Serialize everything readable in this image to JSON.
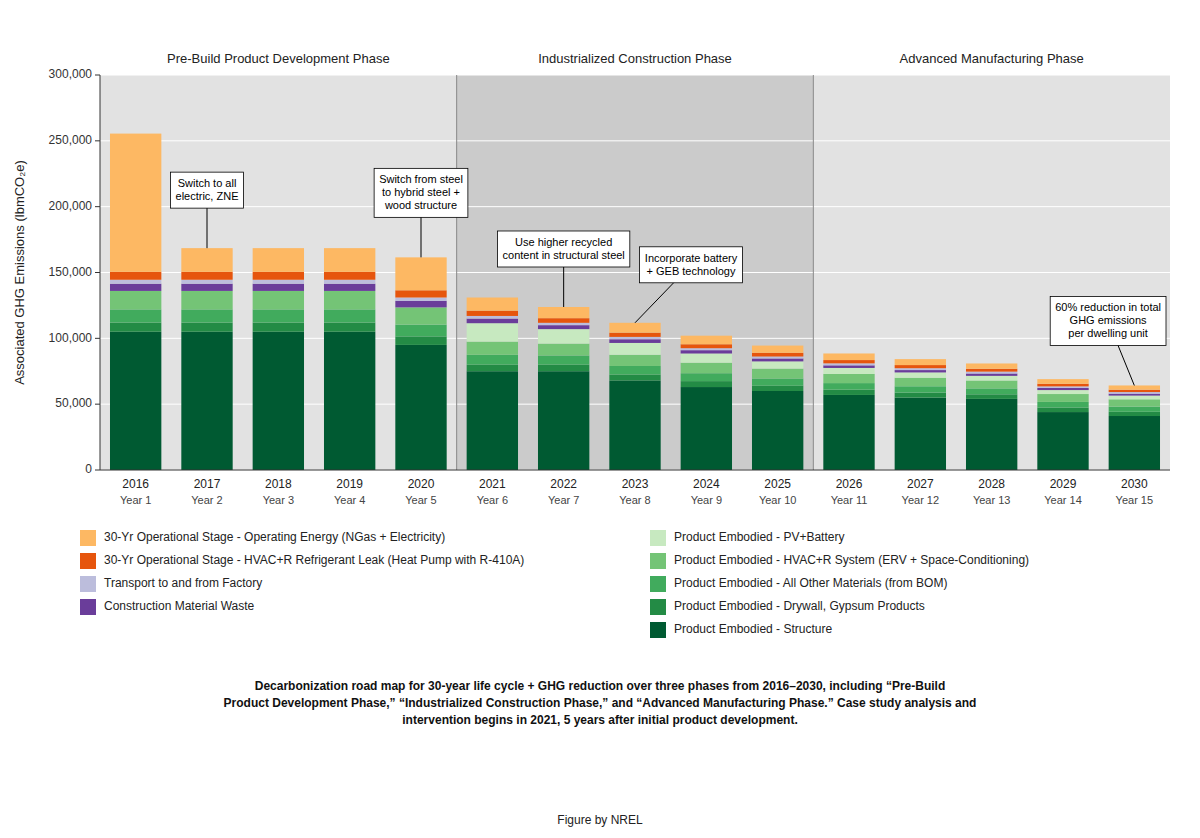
{
  "chart_data": {
    "type": "bar",
    "stacked": true,
    "grid": true,
    "legend": "bottom",
    "categories": [
      "2016",
      "2017",
      "2018",
      "2019",
      "2020",
      "2021",
      "2022",
      "2023",
      "2024",
      "2025",
      "2026",
      "2027",
      "2028",
      "2029",
      "2030"
    ],
    "category_sublabels": [
      "Year 1",
      "Year 2",
      "Year 3",
      "Year 4",
      "Year 5",
      "Year 6",
      "Year 7",
      "Year 8",
      "Year 9",
      "Year 10",
      "Year 11",
      "Year 12",
      "Year 13",
      "Year 14",
      "Year 15"
    ],
    "y_label": "Associated GHG Emissions (lbmCO₂e)",
    "ylim": [
      0,
      300000
    ],
    "yticks": [
      0,
      {
        "value": 50000,
        "label": "50,000"
      },
      {
        "value": 100000,
        "label": "100,000"
      },
      {
        "value": 150000,
        "label": "150,000"
      },
      {
        "value": 200000,
        "label": "200,000"
      },
      {
        "value": 250000,
        "label": "250,000"
      },
      {
        "value": 300000,
        "label": "300,000"
      }
    ],
    "phases": [
      {
        "label": "Pre-Build Product Development Phase",
        "from": "2016",
        "to": "2020",
        "color": "#e2e2e2"
      },
      {
        "label": "Industrialized Construction Phase",
        "from": "2021",
        "to": "2025",
        "color": "#cbcbcb"
      },
      {
        "label": "Advanced Manufacturing Phase",
        "from": "2026",
        "to": "2030",
        "color": "#e2e2e2"
      }
    ],
    "series": [
      {
        "name": "Product Embodied - Structure",
        "color": "#005a32",
        "values": [
          105000,
          105000,
          105000,
          105000,
          95000,
          75000,
          75000,
          68000,
          63000,
          60000,
          57000,
          55000,
          54000,
          44000,
          41000
        ]
      },
      {
        "name": "Product Embodied - Drywall, Gypsum Products",
        "color": "#238b45",
        "values": [
          7000,
          7000,
          7000,
          7000,
          6500,
          5000,
          5000,
          4500,
          4500,
          4000,
          4000,
          3800,
          3500,
          3500,
          3200
        ]
      },
      {
        "name": "Product Embodied - All Other Materials (from BOM)",
        "color": "#41ab5d",
        "values": [
          10000,
          10000,
          10000,
          10000,
          9000,
          7500,
          7000,
          6500,
          6000,
          5500,
          5000,
          4800,
          4500,
          4200,
          4000
        ]
      },
      {
        "name": "Product Embodied - HVAC+R System (ERV + Space-Conditioning)",
        "color": "#74c476",
        "values": [
          14000,
          14000,
          14000,
          14000,
          13000,
          10000,
          9000,
          8500,
          8000,
          7500,
          7000,
          6500,
          6000,
          6000,
          5500
        ]
      },
      {
        "name": "Product Embodied - PV+Battery",
        "color": "#c7e9c0",
        "values": [
          0,
          0,
          0,
          0,
          0,
          14000,
          11000,
          9000,
          7000,
          5500,
          4500,
          4000,
          3500,
          3000,
          2800
        ]
      },
      {
        "name": "Construction Material Waste",
        "color": "#6a3d9a",
        "values": [
          5500,
          5500,
          5500,
          5500,
          5000,
          3500,
          3000,
          2800,
          2500,
          2200,
          2000,
          1800,
          1800,
          1600,
          1500
        ]
      },
      {
        "name": "Transport to and from Factory",
        "color": "#bcbddc",
        "values": [
          3000,
          3000,
          3000,
          3000,
          2500,
          2000,
          1800,
          1800,
          1500,
          1500,
          1500,
          1400,
          1400,
          1200,
          1200
        ]
      },
      {
        "name": "30-Yr Operational Stage - HVAC+R Refrigerant Leak (Heat Pump with R-410A)",
        "color": "#e6550d",
        "values": [
          6000,
          6000,
          6000,
          6000,
          5500,
          4000,
          3500,
          3200,
          3000,
          2800,
          2500,
          2400,
          2200,
          2000,
          1800
        ]
      },
      {
        "name": "30-Yr Operational Stage - Operating Energy (NGas + Electricity)",
        "color": "#fdb863",
        "values": [
          105000,
          18000,
          18000,
          18000,
          25000,
          10000,
          8500,
          7500,
          6500,
          5500,
          5000,
          4500,
          4000,
          3500,
          3200
        ]
      }
    ],
    "annotations": [
      {
        "text": "Switch to all\nelectric, ZNE",
        "category": "2017"
      },
      {
        "text": "Switch from steel\nto hybrid steel +\nwood structure",
        "category": "2020"
      },
      {
        "text": "Use higher recycled\ncontent in structural steel",
        "category": "2022"
      },
      {
        "text": "Incorporate battery\n+ GEB technology",
        "category": "2023"
      },
      {
        "text": "60% reduction in total\nGHG emissions\nper dwelling unit",
        "category": "2030"
      }
    ],
    "caption": "Decarbonization road map for 30-year life cycle + GHG reduction over three phases from 2016–2030, including “Pre-Build\nProduct Development Phase,” “Industrialized Construction Phase,” and “Advanced Manufacturing Phase.” Case study analysis and\nintervention begins in 2021, 5 years after initial product development.",
    "credit": "Figure by NREL"
  }
}
